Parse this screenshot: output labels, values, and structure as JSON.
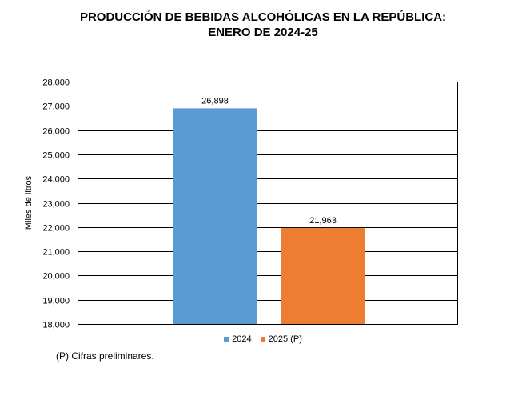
{
  "title": {
    "line1": "PRODUCCIÓN DE BEBIDAS ALCOHÓLICAS EN LA REPÚBLICA:",
    "line2": "ENERO DE 2024-25"
  },
  "footnote": "(P) Cifras  preliminares.",
  "colors": {
    "2024": "#5B9BD5",
    "2025": "#ED7D31"
  },
  "chart_data": {
    "type": "bar",
    "title": "PRODUCCIÓN DE BEBIDAS ALCOHÓLICAS EN LA REPÚBLICA: ENERO DE 2024-25",
    "ylabel": "Miles de litros",
    "ylim": [
      18000,
      28000
    ],
    "yticks": [
      "18,000",
      "19,000",
      "20,000",
      "21,000",
      "22,000",
      "23,000",
      "24,000",
      "25,000",
      "26,000",
      "27,000",
      "28,000"
    ],
    "grid": true,
    "legend_placement": "bottom",
    "series": [
      {
        "name": "2024",
        "value": 26898,
        "label": "26,898",
        "color": "#5B9BD5"
      },
      {
        "name": "2025 (P)",
        "value": 21963,
        "label": "21,963",
        "color": "#ED7D31"
      }
    ]
  }
}
